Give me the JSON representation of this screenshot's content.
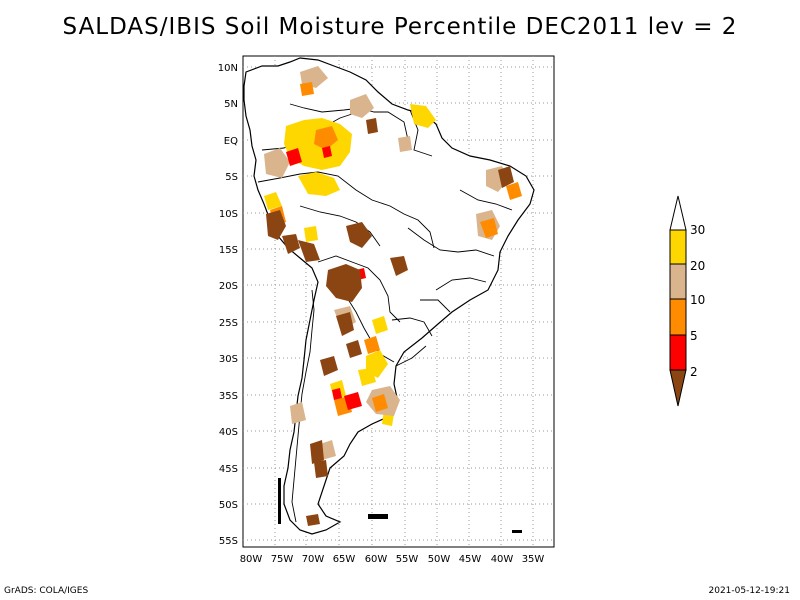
{
  "title": "SALDAS/IBIS Soil Moisture Percentile DEC2011 lev = 2",
  "map": {
    "region": "South America",
    "lat_labels": [
      "10N",
      "5N",
      "EQ",
      "5S",
      "10S",
      "15S",
      "20S",
      "25S",
      "30S",
      "35S",
      "40S",
      "45S",
      "50S",
      "55S"
    ],
    "lon_labels": [
      "80W",
      "75W",
      "70W",
      "65W",
      "60W",
      "55W",
      "50W",
      "45W",
      "40W",
      "35W"
    ],
    "grid": "dotted"
  },
  "legend": {
    "labels": [
      "30",
      "20",
      "10",
      "5",
      "2"
    ],
    "colors": {
      "above_30": "#ffffff",
      "20_30": "#ffd700",
      "10_20": "#d9b48c",
      "5_10": "#ff8c00",
      "2_5": "#ff0000",
      "below_2": "#8b4513"
    }
  },
  "footer": {
    "left": "GrADS: COLA/IGES",
    "right": "2021-05-12-19:21"
  }
}
